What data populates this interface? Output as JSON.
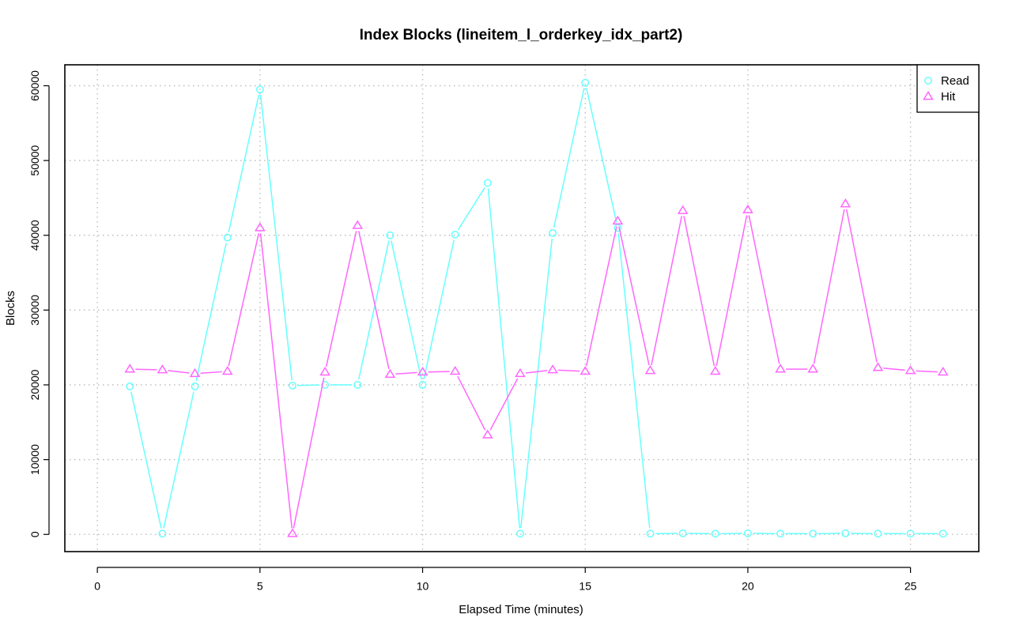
{
  "chart_data": {
    "type": "line",
    "title": "Index Blocks (lineitem_l_orderkey_idx_part2)",
    "xlabel": "Elapsed Time (minutes)",
    "ylabel": "Blocks",
    "xlim": [
      -1,
      27.1
    ],
    "ylim": [
      -2300,
      62800
    ],
    "xticks": [
      0,
      5,
      10,
      15,
      20,
      25
    ],
    "yticks": [
      0,
      10000,
      20000,
      30000,
      40000,
      50000,
      60000
    ],
    "grid": true,
    "legend_position": "top-right",
    "x": [
      1,
      2,
      3,
      4,
      5,
      6,
      7,
      8,
      9,
      10,
      11,
      12,
      13,
      14,
      15,
      16,
      17,
      18,
      19,
      20,
      21,
      22,
      23,
      24,
      25,
      26
    ],
    "series": [
      {
        "name": "Read",
        "color": "#66ffff",
        "marker": "circle",
        "values": [
          19800,
          100,
          19800,
          39700,
          59500,
          19900,
          20000,
          20000,
          40000,
          20000,
          40100,
          47000,
          100,
          40300,
          60400,
          41000,
          100,
          150,
          100,
          150,
          100,
          100,
          150,
          100,
          100,
          100
        ]
      },
      {
        "name": "Hit",
        "color": "#ff66ff",
        "marker": "triangle",
        "values": [
          22100,
          22000,
          21500,
          21800,
          41000,
          100,
          21700,
          41300,
          21400,
          21700,
          21800,
          13300,
          21500,
          22000,
          21800,
          41900,
          21900,
          43300,
          21800,
          43400,
          22100,
          22100,
          44200,
          22300,
          21900,
          21700
        ]
      }
    ]
  }
}
